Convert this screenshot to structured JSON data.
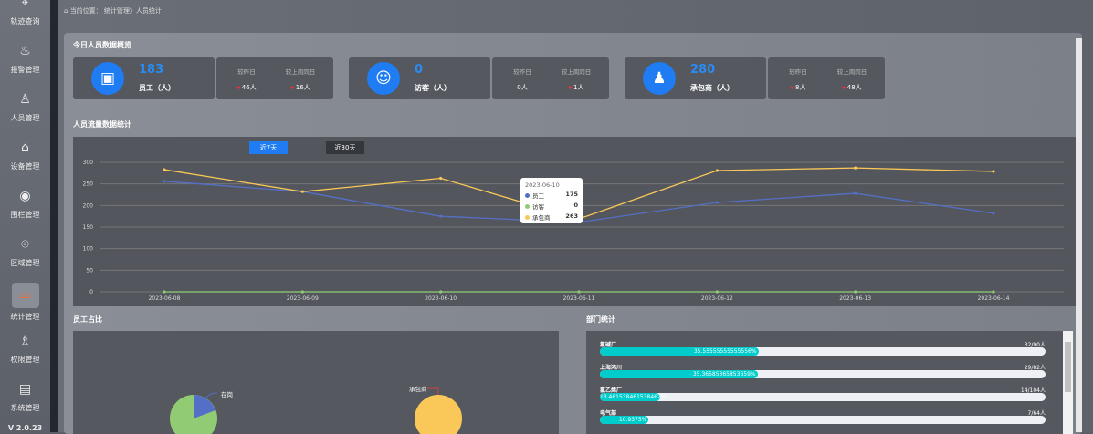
{
  "sidebar": {
    "items": [
      {
        "label": "轨迹查询",
        "icon": "track-icon"
      },
      {
        "label": "报警管理",
        "icon": "alarm-icon"
      },
      {
        "label": "人员管理",
        "icon": "people-icon"
      },
      {
        "label": "设备管理",
        "icon": "device-icon"
      },
      {
        "label": "围栏管理",
        "icon": "fence-icon"
      },
      {
        "label": "区域管理",
        "icon": "area-icon"
      },
      {
        "label": "统计管理",
        "icon": "stats-icon",
        "active": true
      },
      {
        "label": "权限管理",
        "icon": "permission-icon"
      },
      {
        "label": "系统管理",
        "icon": "system-icon"
      }
    ],
    "version": "V 2.0.23"
  },
  "breadcrumb": {
    "prefix": "当前位置：",
    "path": "统计管理》人员统计"
  },
  "overview": {
    "title": "今日人员数据概览",
    "cards": [
      {
        "value": "183",
        "label": "员工（人）",
        "icon": "badge-icon",
        "cmp_day_label": "较昨日",
        "cmp_week_label": "较上周同日",
        "cmp_day": "46人",
        "cmp_week": "16人",
        "day_down": true,
        "week_down": true
      },
      {
        "value": "0",
        "label": "访客（人）",
        "icon": "visitor-icon",
        "cmp_day_label": "较昨日",
        "cmp_week_label": "较上周同日",
        "cmp_day": "0人",
        "cmp_week": "1人",
        "day_down": false,
        "week_down": true
      },
      {
        "value": "280",
        "label": "承包商（人）",
        "icon": "group-icon",
        "cmp_day_label": "较昨日",
        "cmp_week_label": "较上周同日",
        "cmp_day": "8人",
        "cmp_week": "48人",
        "day_down": true,
        "week_down": true
      }
    ]
  },
  "trend": {
    "title": "人员流量数据统计",
    "tabs": [
      "近7天",
      "近30天"
    ],
    "active_tab": 0,
    "tooltip": {
      "date": "2023-06-10",
      "rows": [
        {
          "name": "员工",
          "value": "175"
        },
        {
          "name": "访客",
          "value": "0"
        },
        {
          "name": "承包商",
          "value": "263"
        }
      ]
    }
  },
  "chart_data": [
    {
      "type": "line",
      "categories": [
        "2023-06-08",
        "2023-06-09",
        "2023-06-10",
        "2023-06-11",
        "2023-06-12",
        "2023-06-13",
        "2023-06-14"
      ],
      "ylim": [
        0,
        300
      ],
      "yticks": [
        0,
        50,
        100,
        150,
        200,
        250,
        300
      ],
      "grid": true,
      "series": [
        {
          "name": "员工",
          "color": "#5470c6",
          "values": [
            256,
            232,
            175,
            161,
            207,
            228,
            182
          ]
        },
        {
          "name": "访客",
          "color": "#91cc75",
          "values": [
            0,
            0,
            0,
            0,
            0,
            0,
            0
          ]
        },
        {
          "name": "承包商",
          "color": "#fac858",
          "values": [
            283,
            232,
            263,
            169,
            281,
            287,
            279
          ]
        }
      ]
    },
    {
      "type": "pie",
      "title": "员工占比",
      "slices": [
        {
          "label": "在岗",
          "color": "#5470c6",
          "value": 18
        },
        {
          "label": "",
          "color": "#91cc75",
          "value": 82
        }
      ]
    },
    {
      "type": "pie",
      "slices": [
        {
          "label": "承包商",
          "color": "#fac858",
          "value": 100
        }
      ]
    }
  ],
  "pie": {
    "title": "员工占比",
    "label1": "在岗",
    "label2": "承包商"
  },
  "dept": {
    "title": "部门统计",
    "items": [
      {
        "name": "氯碱厂",
        "count": "32/90人",
        "pct": "35.55555555555556%",
        "value": 35.56
      },
      {
        "name": "上海鸿川",
        "count": "29/82人",
        "pct": "35.36585365853659%",
        "value": 35.37
      },
      {
        "name": "氯乙烯厂",
        "count": "14/104人",
        "pct": "13.461538461538462%",
        "value": 13.46
      },
      {
        "name": "电气部",
        "count": "7/64人",
        "pct": "10.9375%",
        "value": 10.94
      }
    ]
  }
}
